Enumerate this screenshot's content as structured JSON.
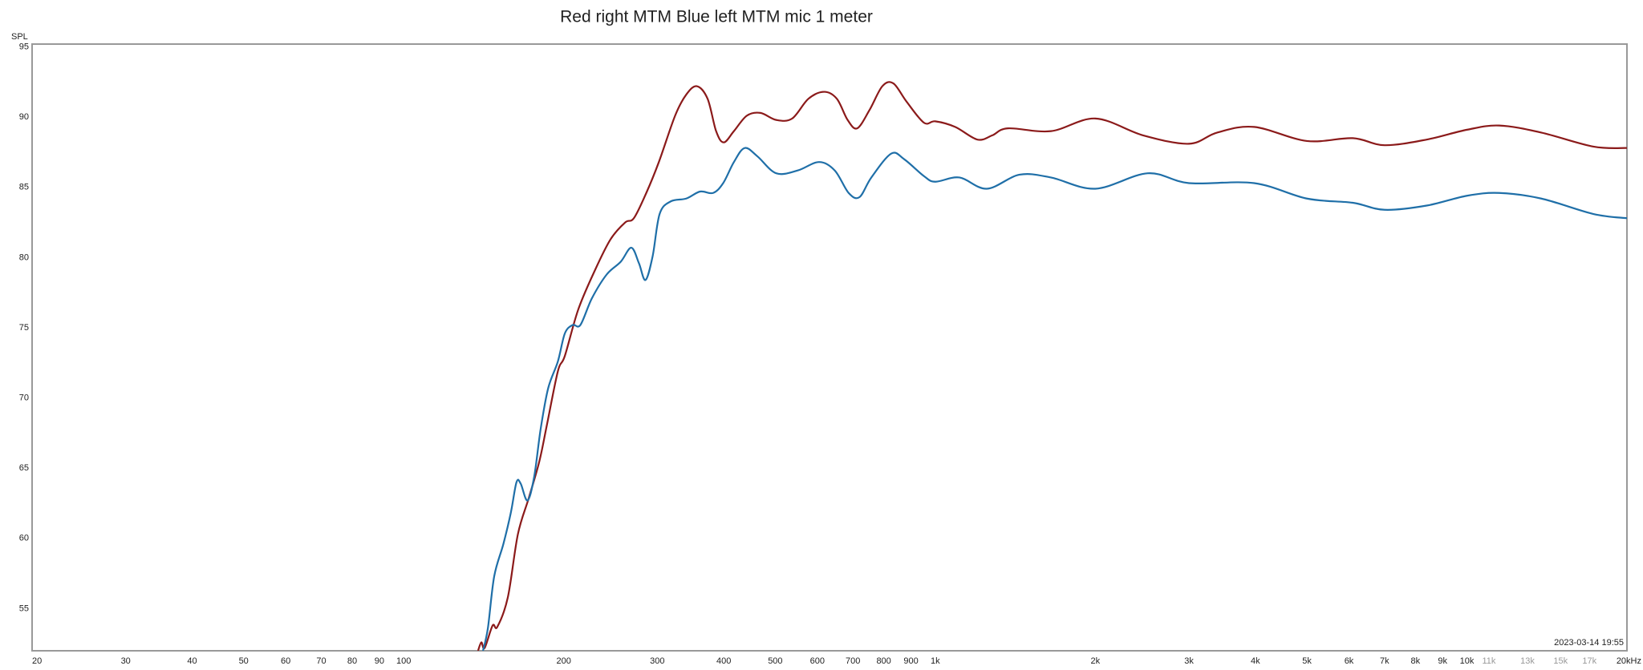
{
  "chart_data": {
    "type": "line",
    "title": "Red right MTM Blue left MTM mic 1 meter",
    "y_label": "SPL",
    "timestamp": "2023-03-14 19:55",
    "x_log": true,
    "grid": true,
    "xlim": [
      20,
      20000
    ],
    "ylim": [
      52,
      95.2
    ],
    "yticks": [
      55,
      60,
      65,
      70,
      75,
      80,
      85,
      90,
      95
    ],
    "xticks": [
      20,
      30,
      40,
      50,
      60,
      70,
      80,
      90,
      100,
      200,
      300,
      400,
      500,
      600,
      700,
      800,
      900,
      {
        "value": 1000,
        "label": "1k"
      },
      {
        "value": 2000,
        "label": "2k"
      },
      {
        "value": 3000,
        "label": "3k"
      },
      {
        "value": 4000,
        "label": "4k"
      },
      {
        "value": 5000,
        "label": "5k"
      },
      {
        "value": 6000,
        "label": "6k"
      },
      {
        "value": 7000,
        "label": "7k"
      },
      {
        "value": 8000,
        "label": "8k"
      },
      {
        "value": 9000,
        "label": "9k"
      },
      {
        "value": 10000,
        "label": "10k"
      },
      {
        "value": 11000,
        "label": "11k"
      },
      {
        "value": 13000,
        "label": "13k"
      },
      {
        "value": 15000,
        "label": "15k"
      },
      {
        "value": 17000,
        "label": "17k"
      },
      {
        "value": 20000,
        "label": "20kHz"
      }
    ],
    "series": [
      {
        "color": "#8b1a1a",
        "x": [
          138,
          140,
          142,
          147,
          150,
          157,
          164,
          172,
          180,
          186,
          195,
          201,
          213,
          229,
          245,
          261,
          271,
          286,
          302,
          324,
          340,
          356,
          373,
          387,
          400,
          418,
          442,
          469,
          502,
          538,
          577,
          618,
          653,
          684,
          713,
          752,
          795,
          834,
          883,
          952,
          1000,
          1090,
          1200,
          1280,
          1370,
          1650,
          2000,
          2460,
          3000,
          3390,
          3980,
          5000,
          6100,
          7000,
          8400,
          10000,
          11500,
          13800,
          17300,
          20000
        ],
        "values": [
          52,
          52.6,
          52.2,
          53.8,
          53.7,
          55.8,
          60.3,
          62.9,
          65.5,
          68.1,
          71.9,
          73,
          76.3,
          79.1,
          81.3,
          82.5,
          82.8,
          84.6,
          86.8,
          90.1,
          91.6,
          92.2,
          91.3,
          89,
          88.2,
          89,
          90.1,
          90.3,
          89.8,
          89.9,
          91.3,
          91.8,
          91.3,
          89.8,
          89.2,
          90.5,
          92.2,
          92.4,
          91.1,
          89.6,
          89.7,
          89.3,
          88.4,
          88.7,
          89.2,
          89,
          89.9,
          88.7,
          88.1,
          88.9,
          89.3,
          88.3,
          88.5,
          88,
          88.4,
          89.1,
          89.4,
          88.9,
          87.9,
          87.8
        ]
      },
      {
        "color": "#1f6fa8",
        "x": [
          141,
          144,
          148,
          154,
          159,
          163,
          166,
          171,
          176,
          181,
          187,
          195,
          201,
          208,
          215,
          226,
          241,
          256,
          268,
          277,
          285,
          294,
          303,
          318,
          340,
          361,
          382,
          399,
          418,
          438,
          463,
          502,
          551,
          604,
          647,
          687,
          720,
          758,
          826,
          874,
          952,
          1000,
          1110,
          1250,
          1440,
          1650,
          2000,
          2510,
          3000,
          3980,
          5000,
          6100,
          7000,
          8400,
          10000,
          11500,
          13800,
          17300,
          20000
        ],
        "values": [
          52,
          53.6,
          57.3,
          59.6,
          61.8,
          64,
          63.9,
          62.7,
          64.4,
          67.8,
          70.7,
          72.6,
          74.6,
          75.2,
          75.2,
          77.1,
          78.8,
          79.7,
          80.7,
          79.6,
          78.4,
          80.1,
          83.1,
          84,
          84.2,
          84.7,
          84.6,
          85.3,
          86.8,
          87.8,
          87.2,
          86,
          86.2,
          86.8,
          86.2,
          84.6,
          84.3,
          85.7,
          87.4,
          87,
          85.8,
          85.4,
          85.7,
          84.9,
          85.9,
          85.7,
          84.9,
          86,
          85.3,
          85.3,
          84.2,
          83.9,
          83.4,
          83.7,
          84.4,
          84.6,
          84.2,
          83.1,
          82.8
        ]
      }
    ]
  }
}
